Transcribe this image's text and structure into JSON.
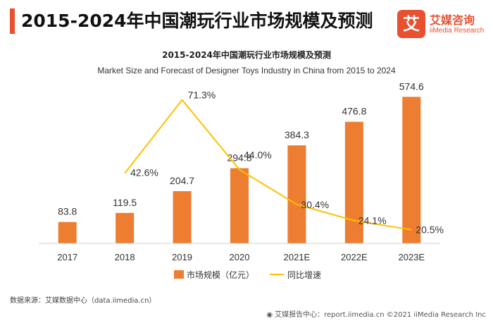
{
  "header": {
    "title": "2015-2024年中国潮玩行业市场规模及预测",
    "logo_mark": "艾",
    "logo_cn": "艾媒咨询",
    "logo_en": "iiMedia Research"
  },
  "chart_data": {
    "type": "bar",
    "title": "2015-2024年中国潮玩行业市场规模及预测",
    "subtitle": "Market Size and Forecast of Designer Toys Industry in China from 2015 to 2024",
    "categories": [
      "2017",
      "2018",
      "2019",
      "2020",
      "2021E",
      "2022E",
      "2023E"
    ],
    "series": [
      {
        "name": "市场规模（亿元）",
        "type": "bar",
        "color": "#ed7d31",
        "values": [
          83.8,
          119.5,
          204.7,
          294.8,
          384.3,
          476.8,
          574.6
        ],
        "labels": [
          "83.8",
          "119.5",
          "204.7",
          "294.8",
          "384.3",
          "476.8",
          "574.6"
        ]
      },
      {
        "name": "同比增速",
        "type": "line",
        "color": "#ffc000",
        "values": [
          null,
          42.6,
          71.3,
          44.0,
          30.4,
          24.1,
          20.5
        ],
        "labels": [
          "",
          "42.6%",
          "71.3%",
          "44.0%",
          "30.4%",
          "24.1%",
          "20.5%"
        ]
      }
    ],
    "bar_ylim": [
      0,
      650
    ],
    "line_ylim": [
      0,
      80
    ],
    "grid": false,
    "legend_position": "bottom"
  },
  "footer": {
    "source": "数据来源：艾媒数据中心（data.iimedia.cn）",
    "report": "艾媒报告中心：report.iimedia.cn  ©2021  iiMedia Research  Inc"
  }
}
